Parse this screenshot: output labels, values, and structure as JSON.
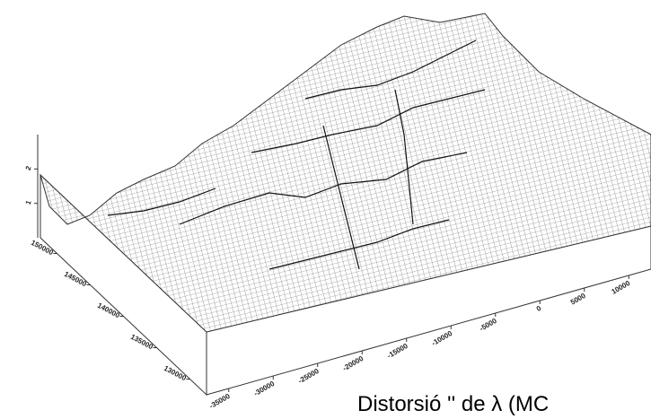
{
  "chart_data": {
    "type": "surface",
    "caption": "Distorsió '' de λ (MC",
    "xlim": [
      -37500,
      12500
    ],
    "xticks": [
      -35000,
      -30000,
      -25000,
      -20000,
      -15000,
      -10000,
      -5000,
      0,
      5000,
      10000
    ],
    "ylim": [
      127500,
      152500
    ],
    "yticks": [
      130000,
      135000,
      140000,
      145000,
      150000
    ],
    "zlim": [
      0,
      3
    ],
    "zticks": [
      1,
      2
    ]
  }
}
